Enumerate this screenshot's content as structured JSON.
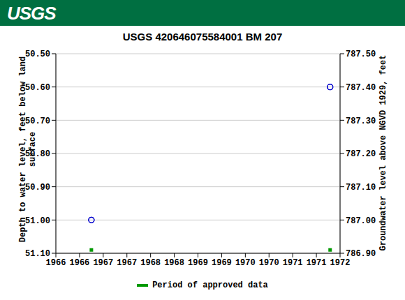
{
  "chart_data": {
    "type": "scatter",
    "logo_text": "USGS",
    "title": "USGS 420646075584001 BM 207",
    "ylabel": "Depth to water level, feet below land surface",
    "y2label": "Groundwater level above NGVD 1929, feet",
    "x": [
      1966.75,
      1971.79
    ],
    "xlim": [
      1966,
      1972
    ],
    "xticks": [
      1966,
      {
        "value": 1966.5,
        "label": "1966"
      },
      1967,
      {
        "value": 1967.5,
        "label": "1967"
      },
      1968,
      {
        "value": 1968.5,
        "label": "1968"
      },
      1969,
      {
        "value": 1969.5,
        "label": "1969"
      },
      1970,
      {
        "value": 1970.5,
        "label": "1970"
      },
      1971,
      {
        "value": 1971.5,
        "label": "1971"
      },
      1972
    ],
    "ylim": [
      51.1,
      50.5
    ],
    "yticks": [
      {
        "value": 50.5,
        "label": "50.50"
      },
      {
        "value": 50.6,
        "label": "50.60"
      },
      {
        "value": 50.7,
        "label": "50.70"
      },
      {
        "value": 50.8,
        "label": "50.80"
      },
      {
        "value": 50.9,
        "label": "50.90"
      },
      {
        "value": 51.0,
        "label": "51.00"
      },
      {
        "value": 51.1,
        "label": "51.10"
      }
    ],
    "y2lim": [
      786.9,
      787.5
    ],
    "y2ticks": [
      {
        "value": 786.9,
        "label": "786.90"
      },
      {
        "value": 787.0,
        "label": "787.00"
      },
      {
        "value": 787.1,
        "label": "787.10"
      },
      {
        "value": 787.2,
        "label": "787.20"
      },
      {
        "value": 787.3,
        "label": "787.30"
      },
      {
        "value": 787.4,
        "label": "787.40"
      },
      {
        "value": 787.5,
        "label": "787.50"
      }
    ],
    "grid": true,
    "series": [
      {
        "color": "#0000cc",
        "marker": "circle_open",
        "values": [
          51.0,
          50.6
        ]
      },
      {
        "color": "#0000cc",
        "marker": "circle_open",
        "axis": "y2",
        "values": [
          787.0,
          787.4
        ]
      },
      {
        "name": "Period of approved data",
        "color": "#009900",
        "marker": "square",
        "values": [
          51.09,
          51.09
        ]
      }
    ]
  }
}
